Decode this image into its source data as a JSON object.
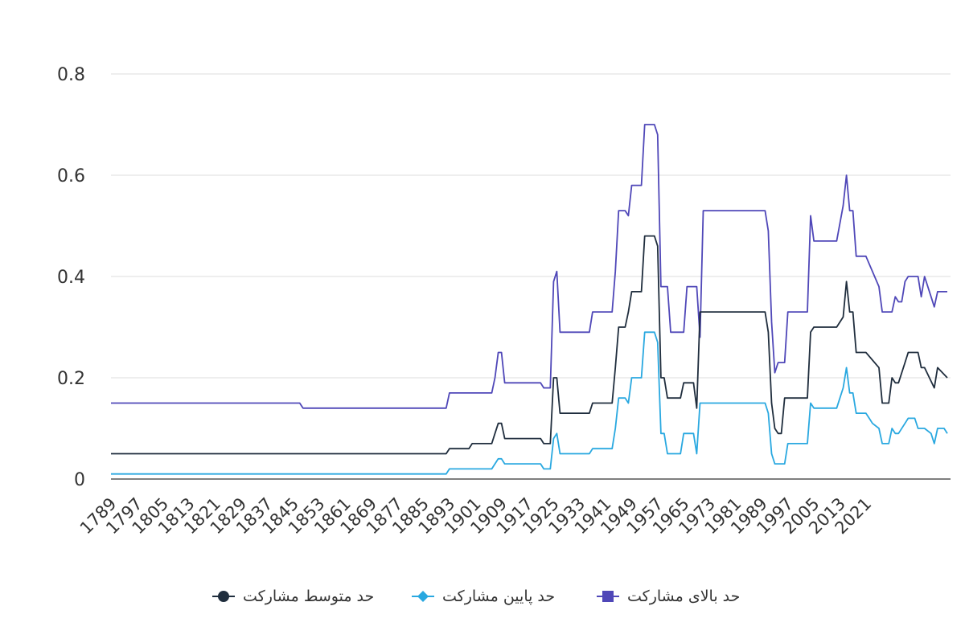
{
  "chart_data": {
    "type": "line",
    "title": "",
    "xlabel": "",
    "ylabel": "",
    "ylim": [
      0,
      0.8
    ],
    "yticks": [
      "0",
      "0.2",
      "0.4",
      "0.6",
      "0.8"
    ],
    "xticks": [
      "1789",
      "1797",
      "1805",
      "1813",
      "1821",
      "1829",
      "1837",
      "1845",
      "1853",
      "1861",
      "1869",
      "1877",
      "1885",
      "1893",
      "1901",
      "1909",
      "1917",
      "1925",
      "1933",
      "1941",
      "1949",
      "1957",
      "1965",
      "1973",
      "1981",
      "1989",
      "1997",
      "2005",
      "2013",
      "2021"
    ],
    "grid": "horizontal",
    "legend_position": "bottom",
    "series": [
      {
        "name": "حد بالای مشارکت",
        "color": "#4F47B8",
        "marker": "square",
        "points": [
          [
            1789,
            0.15
          ],
          [
            1847,
            0.15
          ],
          [
            1848,
            0.14
          ],
          [
            1892,
            0.14
          ],
          [
            1893,
            0.17
          ],
          [
            1906,
            0.17
          ],
          [
            1907,
            0.2
          ],
          [
            1908,
            0.25
          ],
          [
            1909,
            0.25
          ],
          [
            1910,
            0.19
          ],
          [
            1921,
            0.19
          ],
          [
            1922,
            0.18
          ],
          [
            1924,
            0.18
          ],
          [
            1925,
            0.39
          ],
          [
            1926,
            0.41
          ],
          [
            1927,
            0.29
          ],
          [
            1936,
            0.29
          ],
          [
            1937,
            0.33
          ],
          [
            1943,
            0.33
          ],
          [
            1944,
            0.41
          ],
          [
            1945,
            0.53
          ],
          [
            1947,
            0.53
          ],
          [
            1948,
            0.52
          ],
          [
            1949,
            0.58
          ],
          [
            1952,
            0.58
          ],
          [
            1953,
            0.7
          ],
          [
            1956,
            0.7
          ],
          [
            1957,
            0.68
          ],
          [
            1958,
            0.38
          ],
          [
            1960,
            0.38
          ],
          [
            1961,
            0.29
          ],
          [
            1965,
            0.29
          ],
          [
            1966,
            0.38
          ],
          [
            1969,
            0.38
          ],
          [
            1970,
            0.28
          ],
          [
            1971,
            0.53
          ],
          [
            1990,
            0.53
          ],
          [
            1991,
            0.49
          ],
          [
            1992,
            0.31
          ],
          [
            1993,
            0.21
          ],
          [
            1994,
            0.23
          ],
          [
            1996,
            0.23
          ],
          [
            1997,
            0.33
          ],
          [
            2003,
            0.33
          ],
          [
            2004,
            0.52
          ],
          [
            2005,
            0.47
          ],
          [
            2012,
            0.47
          ],
          [
            2014,
            0.54
          ],
          [
            2015,
            0.6
          ],
          [
            2016,
            0.53
          ],
          [
            2017,
            0.53
          ],
          [
            2018,
            0.44
          ],
          [
            2021,
            0.44
          ],
          [
            2025,
            0.38
          ],
          [
            2026,
            0.33
          ],
          [
            2029,
            0.33
          ],
          [
            2030,
            0.36
          ],
          [
            2031,
            0.35
          ],
          [
            2032,
            0.35
          ],
          [
            2033,
            0.39
          ],
          [
            2034,
            0.4
          ],
          [
            2037,
            0.4
          ],
          [
            2038,
            0.36
          ],
          [
            2039,
            0.4
          ],
          [
            2041,
            0.36
          ],
          [
            2042,
            0.34
          ],
          [
            2043,
            0.37
          ],
          [
            2046,
            0.37
          ]
        ]
      },
      {
        "name": "حد پایین مشارکت",
        "color": "#29A8E0",
        "marker": "diamond",
        "points": [
          [
            1789,
            0.01
          ],
          [
            1892,
            0.01
          ],
          [
            1893,
            0.02
          ],
          [
            1906,
            0.02
          ],
          [
            1907,
            0.03
          ],
          [
            1908,
            0.04
          ],
          [
            1909,
            0.04
          ],
          [
            1910,
            0.03
          ],
          [
            1921,
            0.03
          ],
          [
            1922,
            0.02
          ],
          [
            1924,
            0.02
          ],
          [
            1925,
            0.08
          ],
          [
            1926,
            0.09
          ],
          [
            1927,
            0.05
          ],
          [
            1936,
            0.05
          ],
          [
            1937,
            0.06
          ],
          [
            1943,
            0.06
          ],
          [
            1944,
            0.1
          ],
          [
            1945,
            0.16
          ],
          [
            1947,
            0.16
          ],
          [
            1948,
            0.15
          ],
          [
            1949,
            0.2
          ],
          [
            1952,
            0.2
          ],
          [
            1953,
            0.29
          ],
          [
            1956,
            0.29
          ],
          [
            1957,
            0.27
          ],
          [
            1958,
            0.09
          ],
          [
            1959,
            0.09
          ],
          [
            1960,
            0.05
          ],
          [
            1964,
            0.05
          ],
          [
            1965,
            0.09
          ],
          [
            1968,
            0.09
          ],
          [
            1969,
            0.05
          ],
          [
            1970,
            0.15
          ],
          [
            1990,
            0.15
          ],
          [
            1991,
            0.13
          ],
          [
            1992,
            0.05
          ],
          [
            1993,
            0.03
          ],
          [
            1996,
            0.03
          ],
          [
            1997,
            0.07
          ],
          [
            2003,
            0.07
          ],
          [
            2004,
            0.15
          ],
          [
            2005,
            0.14
          ],
          [
            2012,
            0.14
          ],
          [
            2014,
            0.18
          ],
          [
            2015,
            0.22
          ],
          [
            2016,
            0.17
          ],
          [
            2017,
            0.17
          ],
          [
            2018,
            0.13
          ],
          [
            2021,
            0.13
          ],
          [
            2022,
            0.12
          ],
          [
            2023,
            0.11
          ],
          [
            2025,
            0.1
          ],
          [
            2026,
            0.07
          ],
          [
            2028,
            0.07
          ],
          [
            2029,
            0.1
          ],
          [
            2030,
            0.09
          ],
          [
            2031,
            0.09
          ],
          [
            2033,
            0.11
          ],
          [
            2034,
            0.12
          ],
          [
            2036,
            0.12
          ],
          [
            2037,
            0.1
          ],
          [
            2038,
            0.1
          ],
          [
            2039,
            0.1
          ],
          [
            2041,
            0.09
          ],
          [
            2042,
            0.07
          ],
          [
            2043,
            0.1
          ],
          [
            2045,
            0.1
          ],
          [
            2046,
            0.09
          ]
        ]
      },
      {
        "name": "حد متوسط مشارکت",
        "color": "#1F2D3D",
        "marker": "circle",
        "points": [
          [
            1789,
            0.05
          ],
          [
            1892,
            0.05
          ],
          [
            1893,
            0.06
          ],
          [
            1899,
            0.06
          ],
          [
            1900,
            0.07
          ],
          [
            1906,
            0.07
          ],
          [
            1907,
            0.09
          ],
          [
            1908,
            0.11
          ],
          [
            1909,
            0.11
          ],
          [
            1910,
            0.08
          ],
          [
            1921,
            0.08
          ],
          [
            1922,
            0.07
          ],
          [
            1924,
            0.07
          ],
          [
            1925,
            0.2
          ],
          [
            1926,
            0.2
          ],
          [
            1927,
            0.13
          ],
          [
            1936,
            0.13
          ],
          [
            1937,
            0.15
          ],
          [
            1943,
            0.15
          ],
          [
            1944,
            0.22
          ],
          [
            1945,
            0.3
          ],
          [
            1947,
            0.3
          ],
          [
            1948,
            0.33
          ],
          [
            1949,
            0.37
          ],
          [
            1952,
            0.37
          ],
          [
            1953,
            0.48
          ],
          [
            1956,
            0.48
          ],
          [
            1957,
            0.46
          ],
          [
            1958,
            0.2
          ],
          [
            1959,
            0.2
          ],
          [
            1960,
            0.16
          ],
          [
            1964,
            0.16
          ],
          [
            1965,
            0.19
          ],
          [
            1968,
            0.19
          ],
          [
            1969,
            0.14
          ],
          [
            1970,
            0.33
          ],
          [
            1990,
            0.33
          ],
          [
            1991,
            0.29
          ],
          [
            1992,
            0.15
          ],
          [
            1993,
            0.1
          ],
          [
            1994,
            0.09
          ],
          [
            1995,
            0.09
          ],
          [
            1996,
            0.16
          ],
          [
            2003,
            0.16
          ],
          [
            2004,
            0.29
          ],
          [
            2005,
            0.3
          ],
          [
            2012,
            0.3
          ],
          [
            2014,
            0.32
          ],
          [
            2015,
            0.39
          ],
          [
            2016,
            0.33
          ],
          [
            2017,
            0.33
          ],
          [
            2018,
            0.25
          ],
          [
            2021,
            0.25
          ],
          [
            2025,
            0.22
          ],
          [
            2026,
            0.15
          ],
          [
            2028,
            0.15
          ],
          [
            2029,
            0.2
          ],
          [
            2030,
            0.19
          ],
          [
            2031,
            0.19
          ],
          [
            2033,
            0.23
          ],
          [
            2034,
            0.25
          ],
          [
            2037,
            0.25
          ],
          [
            2038,
            0.22
          ],
          [
            2039,
            0.22
          ],
          [
            2042,
            0.18
          ],
          [
            2043,
            0.22
          ],
          [
            2046,
            0.2
          ]
        ]
      }
    ]
  },
  "legend_order": [
    2,
    1,
    0
  ]
}
